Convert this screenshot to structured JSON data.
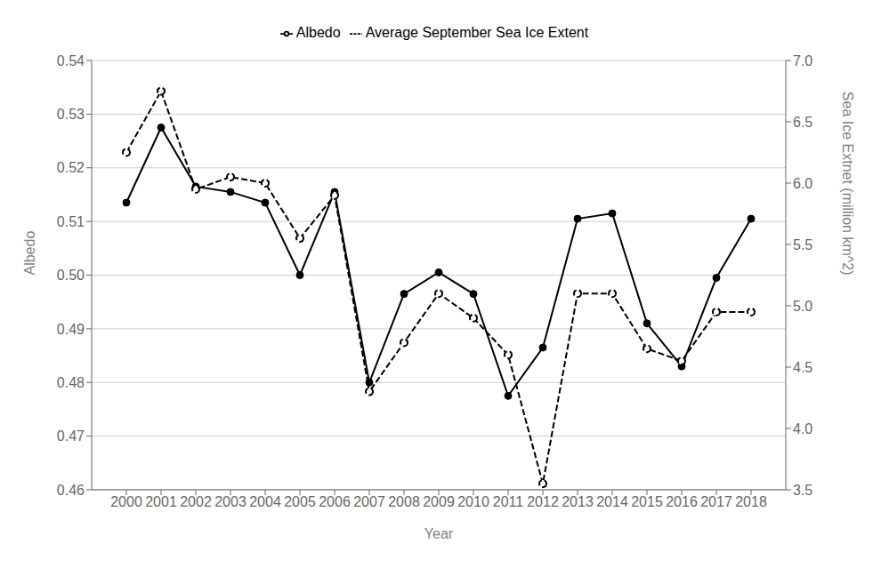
{
  "chart_data": {
    "type": "line",
    "xlabel": "Year",
    "ylabel": "Albedo",
    "y2label": "Sea Ice Extnet (million km^2)",
    "x": [
      2000,
      2001,
      2002,
      2003,
      2004,
      2005,
      2006,
      2007,
      2008,
      2009,
      2010,
      2011,
      2012,
      2013,
      2014,
      2015,
      2016,
      2017,
      2018
    ],
    "series": [
      {
        "name": "Albedo",
        "color": "#000000",
        "marker": "filled_circle",
        "line_style": "solid",
        "axis": "y",
        "values": [
          0.5135,
          0.5275,
          0.5165,
          0.5155,
          0.5135,
          0.5,
          0.5155,
          0.48,
          0.4965,
          0.5005,
          0.4965,
          0.4775,
          0.4865,
          0.5105,
          0.5115,
          0.491,
          0.483,
          0.4995,
          0.5105
        ]
      },
      {
        "name": "Average September Sea Ice Extent",
        "color": "#000000",
        "marker": "open_circle",
        "line_style": "dashed",
        "axis": "y2",
        "values": [
          6.25,
          6.75,
          5.95,
          6.05,
          6.0,
          5.55,
          5.9,
          4.3,
          4.7,
          5.1,
          4.9,
          4.6,
          3.55,
          5.1,
          5.1,
          4.65,
          4.55,
          4.95,
          4.95
        ]
      }
    ],
    "xlim": [
      1999,
      2019
    ],
    "xticks": [
      2000,
      2001,
      2002,
      2003,
      2004,
      2005,
      2006,
      2007,
      2008,
      2009,
      2010,
      2011,
      2012,
      2013,
      2014,
      2015,
      2016,
      2017,
      2018
    ],
    "ylim": [
      0.46,
      0.54
    ],
    "yticks": [
      0.46,
      0.47,
      0.48,
      0.49,
      {
        "value": 0.5,
        "label": "0.50"
      },
      0.51,
      0.52,
      0.53,
      0.54
    ],
    "y2lim": [
      3.5,
      7.0
    ],
    "y2ticks": [
      3.5,
      {
        "value": 4,
        "label": "4.0"
      },
      4.5,
      {
        "value": 5,
        "label": "5.0"
      },
      5.5,
      {
        "value": 6,
        "label": "6.0"
      },
      6.5,
      {
        "value": 7,
        "label": "7.0"
      }
    ],
    "grid": true,
    "legend": "top"
  }
}
